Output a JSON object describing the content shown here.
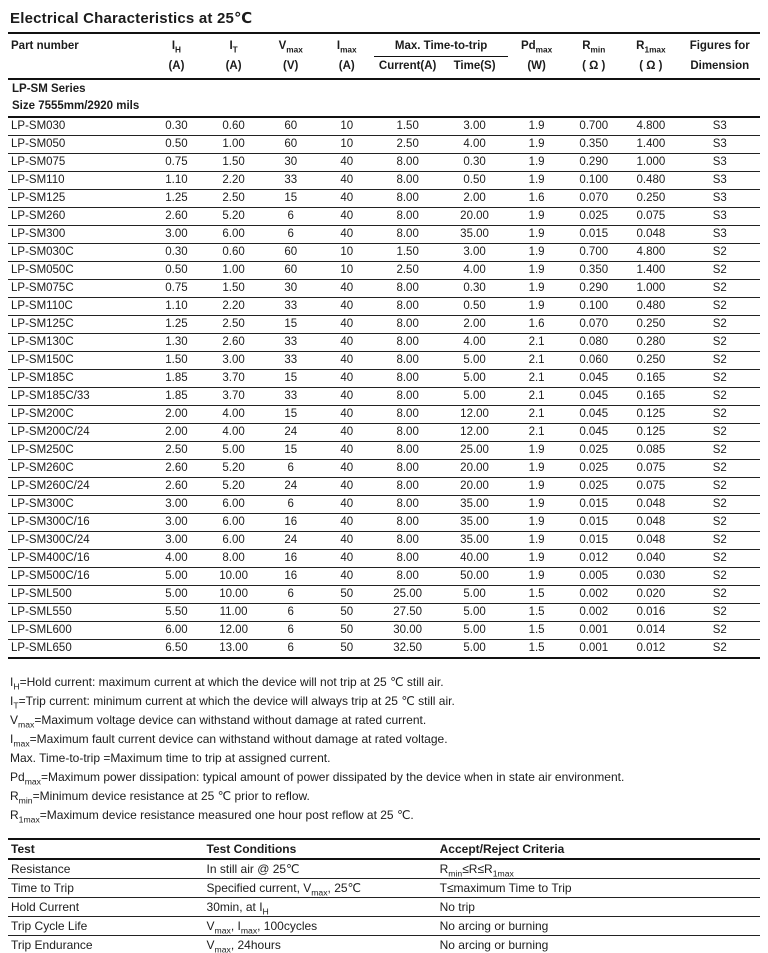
{
  "title": "Electrical Characteristics at 25℃",
  "table": {
    "header": {
      "part_number": "Part number",
      "ih": "I[H]",
      "it": "I[T]",
      "vmax": "V[max]",
      "imax": "I[max]",
      "max_time_to_trip": "Max. Time-to-trip",
      "pdmax": "Pd[max]",
      "rmin": "R[min]",
      "r1max": "R[1max]",
      "figures": "Figures for",
      "units": {
        "ih": "(A)",
        "it": "(A)",
        "vmax": "(V)",
        "imax": "(A)",
        "current": "Current(A)",
        "time": "Time(S)",
        "pdmax": "(W)",
        "rmin": "( Ω )",
        "r1max": "( Ω )",
        "dimension": "Dimension"
      }
    },
    "group_label": "LP-SM Series",
    "group_size": "Size 7555mm/2920 mils",
    "rows": [
      [
        "LP-SM030",
        "0.30",
        "0.60",
        "60",
        "10",
        "1.50",
        "3.00",
        "1.9",
        "0.700",
        "4.800",
        "S3"
      ],
      [
        "LP-SM050",
        "0.50",
        "1.00",
        "60",
        "10",
        "2.50",
        "4.00",
        "1.9",
        "0.350",
        "1.400",
        "S3"
      ],
      [
        "LP-SM075",
        "0.75",
        "1.50",
        "30",
        "40",
        "8.00",
        "0.30",
        "1.9",
        "0.290",
        "1.000",
        "S3"
      ],
      [
        "LP-SM110",
        "1.10",
        "2.20",
        "33",
        "40",
        "8.00",
        "0.50",
        "1.9",
        "0.100",
        "0.480",
        "S3"
      ],
      [
        "LP-SM125",
        "1.25",
        "2.50",
        "15",
        "40",
        "8.00",
        "2.00",
        "1.6",
        "0.070",
        "0.250",
        "S3"
      ],
      [
        "LP-SM260",
        "2.60",
        "5.20",
        "6",
        "40",
        "8.00",
        "20.00",
        "1.9",
        "0.025",
        "0.075",
        "S3"
      ],
      [
        "LP-SM300",
        "3.00",
        "6.00",
        "6",
        "40",
        "8.00",
        "35.00",
        "1.9",
        "0.015",
        "0.048",
        "S3"
      ],
      [
        "LP-SM030C",
        "0.30",
        "0.60",
        "60",
        "10",
        "1.50",
        "3.00",
        "1.9",
        "0.700",
        "4.800",
        "S2"
      ],
      [
        "LP-SM050C",
        "0.50",
        "1.00",
        "60",
        "10",
        "2.50",
        "4.00",
        "1.9",
        "0.350",
        "1.400",
        "S2"
      ],
      [
        "LP-SM075C",
        "0.75",
        "1.50",
        "30",
        "40",
        "8.00",
        "0.30",
        "1.9",
        "0.290",
        "1.000",
        "S2"
      ],
      [
        "LP-SM110C",
        "1.10",
        "2.20",
        "33",
        "40",
        "8.00",
        "0.50",
        "1.9",
        "0.100",
        "0.480",
        "S2"
      ],
      [
        "LP-SM125C",
        "1.25",
        "2.50",
        "15",
        "40",
        "8.00",
        "2.00",
        "1.6",
        "0.070",
        "0.250",
        "S2"
      ],
      [
        "LP-SM130C",
        "1.30",
        "2.60",
        "33",
        "40",
        "8.00",
        "4.00",
        "2.1",
        "0.080",
        "0.280",
        "S2"
      ],
      [
        "LP-SM150C",
        "1.50",
        "3.00",
        "33",
        "40",
        "8.00",
        "5.00",
        "2.1",
        "0.060",
        "0.250",
        "S2"
      ],
      [
        "LP-SM185C",
        "1.85",
        "3.70",
        "15",
        "40",
        "8.00",
        "5.00",
        "2.1",
        "0.045",
        "0.165",
        "S2"
      ],
      [
        "LP-SM185C/33",
        "1.85",
        "3.70",
        "33",
        "40",
        "8.00",
        "5.00",
        "2.1",
        "0.045",
        "0.165",
        "S2"
      ],
      [
        "LP-SM200C",
        "2.00",
        "4.00",
        "15",
        "40",
        "8.00",
        "12.00",
        "2.1",
        "0.045",
        "0.125",
        "S2"
      ],
      [
        "LP-SM200C/24",
        "2.00",
        "4.00",
        "24",
        "40",
        "8.00",
        "12.00",
        "2.1",
        "0.045",
        "0.125",
        "S2"
      ],
      [
        "LP-SM250C",
        "2.50",
        "5.00",
        "15",
        "40",
        "8.00",
        "25.00",
        "1.9",
        "0.025",
        "0.085",
        "S2"
      ],
      [
        "LP-SM260C",
        "2.60",
        "5.20",
        "6",
        "40",
        "8.00",
        "20.00",
        "1.9",
        "0.025",
        "0.075",
        "S2"
      ],
      [
        "LP-SM260C/24",
        "2.60",
        "5.20",
        "24",
        "40",
        "8.00",
        "20.00",
        "1.9",
        "0.025",
        "0.075",
        "S2"
      ],
      [
        "LP-SM300C",
        "3.00",
        "6.00",
        "6",
        "40",
        "8.00",
        "35.00",
        "1.9",
        "0.015",
        "0.048",
        "S2"
      ],
      [
        "LP-SM300C/16",
        "3.00",
        "6.00",
        "16",
        "40",
        "8.00",
        "35.00",
        "1.9",
        "0.015",
        "0.048",
        "S2"
      ],
      [
        "LP-SM300C/24",
        "3.00",
        "6.00",
        "24",
        "40",
        "8.00",
        "35.00",
        "1.9",
        "0.015",
        "0.048",
        "S2"
      ],
      [
        "LP-SM400C/16",
        "4.00",
        "8.00",
        "16",
        "40",
        "8.00",
        "40.00",
        "1.9",
        "0.012",
        "0.040",
        "S2"
      ],
      [
        "LP-SM500C/16",
        "5.00",
        "10.00",
        "16",
        "40",
        "8.00",
        "50.00",
        "1.9",
        "0.005",
        "0.030",
        "S2"
      ],
      [
        "LP-SML500",
        "5.00",
        "10.00",
        "6",
        "50",
        "25.00",
        "5.00",
        "1.5",
        "0.002",
        "0.020",
        "S2"
      ],
      [
        "LP-SML550",
        "5.50",
        "11.00",
        "6",
        "50",
        "27.50",
        "5.00",
        "1.5",
        "0.002",
        "0.016",
        "S2"
      ],
      [
        "LP-SML600",
        "6.00",
        "12.00",
        "6",
        "50",
        "30.00",
        "5.00",
        "1.5",
        "0.001",
        "0.014",
        "S2"
      ],
      [
        "LP-SML650",
        "6.50",
        "13.00",
        "6",
        "50",
        "32.50",
        "5.00",
        "1.5",
        "0.001",
        "0.012",
        "S2"
      ]
    ]
  },
  "notes": [
    "I[H]=Hold current: maximum current at which the device will not trip at 25 ℃ still air.",
    "I[T]=Trip current: minimum current at which the device will always trip at 25 ℃ still air.",
    "V[max]=Maximum voltage device can withstand without damage at rated current.",
    "I[max]=Maximum fault current device can withstand without damage at rated voltage.",
    "Max. Time-to-trip =Maximum time to trip at assigned current.",
    "Pd[max]=Maximum power dissipation: typical amount of power dissipated by the device when in state air environment.",
    "R[min]=Minimum device resistance at 25 ℃ prior to reflow.",
    "R[1max]=Maximum device resistance measured one hour post reflow at 25 ℃."
  ],
  "test_table": {
    "headers": [
      "Test",
      "Test Conditions",
      "Accept/Reject Criteria"
    ],
    "rows": [
      [
        "Resistance",
        "In still air @ 25℃",
        "R[min]≤R≤R[1max]"
      ],
      [
        "Time to Trip",
        "Specified current, V[max], 25℃",
        "T≤maximum Time to Trip"
      ],
      [
        "Hold Current",
        "30min, at I[H]",
        "No trip"
      ],
      [
        "Trip Cycle Life",
        "V[max], I[max], 100cycles",
        "No arcing or burning"
      ],
      [
        "Trip Endurance",
        "V[max], 24hours",
        "No arcing or burning"
      ]
    ]
  }
}
